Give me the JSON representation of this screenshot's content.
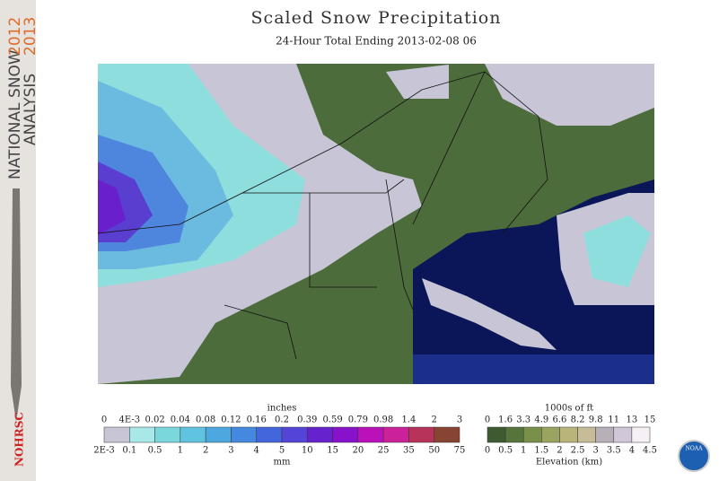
{
  "side_banner": {
    "line1": "NATIONAL SNOW",
    "year1": "2012",
    "line2": "ANALYSIS",
    "year2": "2013",
    "badge": "NOHRSC"
  },
  "header": {
    "title": "Scaled Snow Precipitation",
    "subtitle": "24-Hour Total Ending 2013-02-08 06"
  },
  "legend_precip": {
    "top_unit": "inches",
    "top_labels": [
      "0",
      "4E-3",
      "0.02",
      "0.04",
      "0.08",
      "0.12",
      "0.16",
      "0.2",
      "0.39",
      "0.59",
      "0.79",
      "0.98",
      "1.4",
      "2",
      "3"
    ],
    "bottom_labels": [
      "2E-3",
      "0.1",
      "0.5",
      "1",
      "2",
      "3",
      "4",
      "5",
      "10",
      "15",
      "20",
      "25",
      "35",
      "50",
      "75"
    ],
    "bottom_unit": "mm"
  },
  "legend_elev": {
    "top_unit": "1000s of ft",
    "top_labels": [
      "0",
      "1.6",
      "3.3",
      "4.9",
      "6.6",
      "8.2",
      "9.8",
      "11",
      "13",
      "15"
    ],
    "bottom_labels": [
      "0",
      "0.5",
      "1",
      "1.5",
      "2",
      "2.5",
      "3",
      "3.5",
      "4",
      "4.5"
    ],
    "bottom_unit": "Elevation (km)"
  },
  "logo": "NOAA"
}
